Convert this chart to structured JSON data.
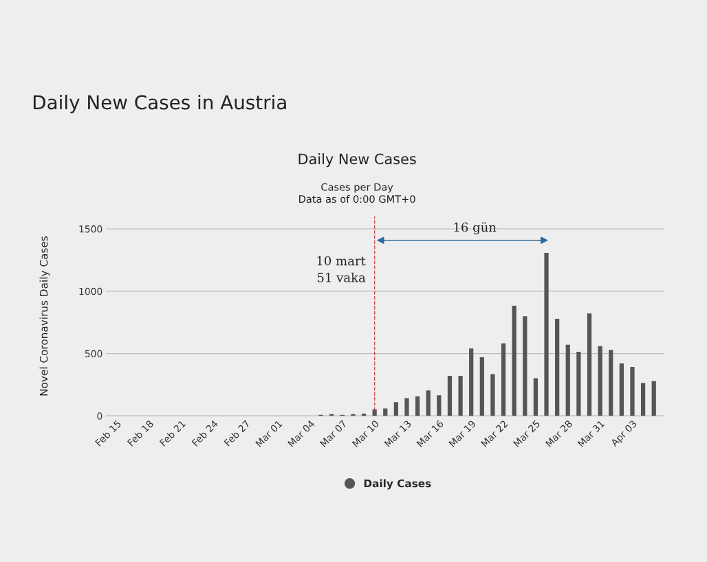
{
  "chart_data": {
    "type": "bar",
    "title": "Daily New Cases in Austria",
    "subtitle": "Daily New Cases",
    "annotations": [
      "Cases per Day\nData as of 0:00 GMT+0",
      "10 mart\n51 vaka",
      "16 gün"
    ],
    "ylabel": "Novel Coronavirus Daily Cases",
    "categories": [
      "Feb 15",
      null,
      null,
      "Feb 18",
      null,
      null,
      "Feb 21",
      null,
      null,
      "Feb 24",
      null,
      null,
      "Feb 27",
      null,
      null,
      "Mar 01",
      null,
      null,
      "Mar 04",
      null,
      null,
      "Mar 07",
      null,
      null,
      "Mar 10",
      null,
      null,
      "Mar 13",
      null,
      null,
      "Mar 16",
      null,
      null,
      "Mar 19",
      null,
      null,
      "Mar 22",
      null,
      null,
      "Mar 25",
      null,
      null,
      "Mar 28",
      null,
      null,
      "Mar 31",
      null,
      null,
      "Apr 03",
      null,
      null
    ],
    "series": [
      {
        "name": "Daily Cases",
        "color": "#555555",
        "values": [
          0,
          0,
          0,
          0,
          0,
          0,
          0,
          0,
          0,
          0,
          0,
          0,
          0,
          0,
          0,
          0,
          0,
          0,
          0,
          8,
          14,
          8,
          14,
          18,
          51,
          59,
          111,
          142,
          156,
          204,
          165,
          321,
          321,
          541,
          470,
          335,
          582,
          884,
          799,
          302,
          1308,
          779,
          571,
          514,
          822,
          559,
          530,
          420,
          393,
          263,
          278
        ]
      }
    ],
    "ylim": [
      0,
      1600
    ],
    "yticks": [
      0,
      500,
      1000,
      1500
    ],
    "grid": "y",
    "legend": "bottom",
    "ref_lines": [
      {
        "axis": "x",
        "value": "Mar 10",
        "color": "#c0504d",
        "line_style": "dashed"
      }
    ]
  }
}
